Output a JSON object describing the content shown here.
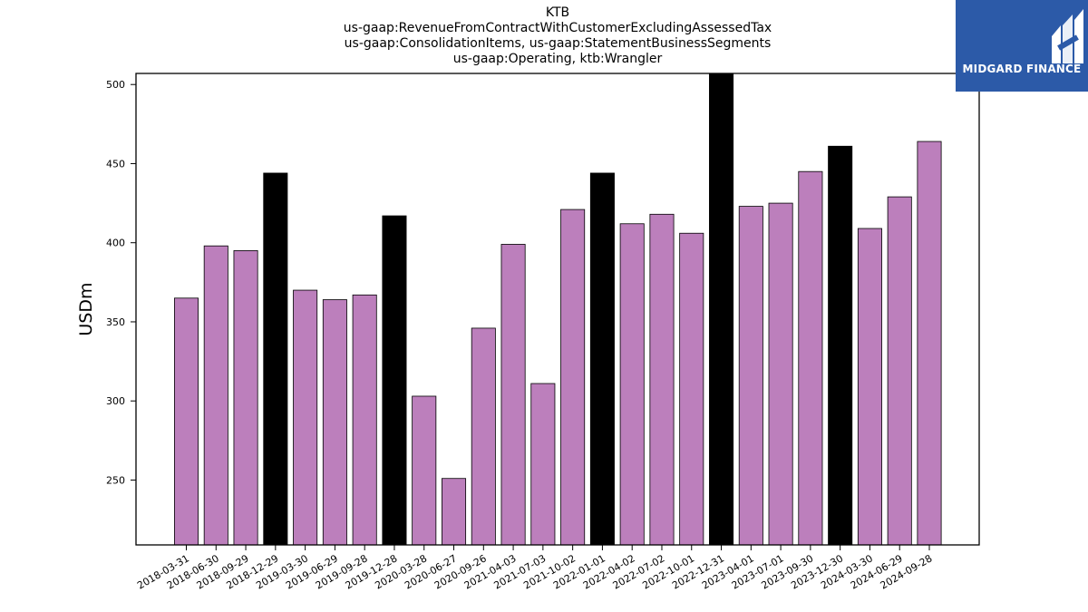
{
  "title_lines": [
    "KTB",
    "us-gaap:RevenueFromContractWithCustomerExcludingAssessedTax",
    "us-gaap:ConsolidationItems, us-gaap:StatementBusinessSegments",
    "us-gaap:Operating, ktb:Wrangler"
  ],
  "logo": {
    "text": "MIDGARD FINANCE",
    "background": "#2c5aa8"
  },
  "chart_data": {
    "type": "bar",
    "ylabel": "USDm",
    "xlabel": "",
    "ylim": [
      209,
      507
    ],
    "yticks": [
      250,
      300,
      350,
      400,
      450,
      500
    ],
    "grid": false,
    "colors": {
      "quarter": "#bc7fbc",
      "year_end": "#000000",
      "edge": "#000000"
    },
    "categories": [
      "2018-03-31",
      "2018-06-30",
      "2018-09-29",
      "2018-12-29",
      "2019-03-30",
      "2019-06-29",
      "2019-09-28",
      "2019-12-28",
      "2020-03-28",
      "2020-06-27",
      "2020-09-26",
      "2021-04-03",
      "2021-07-03",
      "2021-10-02",
      "2022-01-01",
      "2022-04-02",
      "2022-07-02",
      "2022-10-01",
      "2022-12-31",
      "2023-04-01",
      "2023-07-01",
      "2023-09-30",
      "2023-12-30",
      "2024-03-30",
      "2024-06-29",
      "2024-09-28"
    ],
    "values": [
      365,
      398,
      395,
      444,
      370,
      364,
      367,
      417,
      303,
      251,
      346,
      399,
      311,
      421,
      444,
      412,
      418,
      406,
      508,
      423,
      425,
      445,
      461,
      409,
      429,
      464
    ],
    "highlight": [
      false,
      false,
      false,
      true,
      false,
      false,
      false,
      true,
      false,
      false,
      false,
      false,
      false,
      false,
      true,
      false,
      false,
      false,
      true,
      false,
      false,
      false,
      true,
      false,
      false,
      false
    ]
  }
}
